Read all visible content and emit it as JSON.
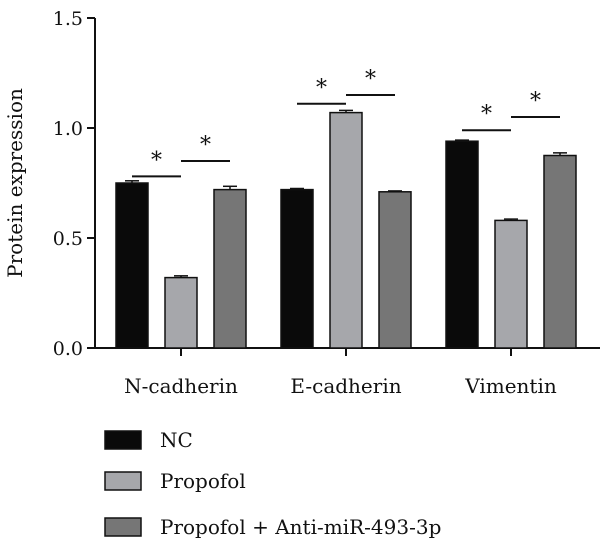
{
  "chart_data": {
    "type": "bar",
    "ylabel": "Protein expression",
    "xlabel": "",
    "ylim": [
      0,
      1.5
    ],
    "yticks": [
      "0.0",
      "0.5",
      "1.0",
      "1.5"
    ],
    "ytick_values": [
      0,
      0.5,
      1.0,
      1.5
    ],
    "categories": [
      "N-cadherin",
      "E-cadherin",
      "Vimentin"
    ],
    "series": [
      {
        "name": "NC",
        "values": [
          0.75,
          0.72,
          0.94
        ],
        "errors": [
          0.01,
          0.005,
          0.005
        ],
        "color": "#0a0a0a"
      },
      {
        "name": "Propofol",
        "values": [
          0.32,
          1.07,
          0.58
        ],
        "errors": [
          0.008,
          0.01,
          0.006
        ],
        "color": "#a6a7ab"
      },
      {
        "name": "Propofol + Anti-miR-493-3p",
        "values": [
          0.72,
          0.71,
          0.875
        ],
        "errors": [
          0.015,
          0.004,
          0.012
        ],
        "color": "#767676"
      }
    ],
    "significance": [
      {
        "category": 0,
        "from": 0,
        "to": 1,
        "y": 0.78,
        "label": "*"
      },
      {
        "category": 0,
        "from": 1,
        "to": 2,
        "y": 0.85,
        "label": "*"
      },
      {
        "category": 1,
        "from": 0,
        "to": 1,
        "y": 1.11,
        "label": "*"
      },
      {
        "category": 1,
        "from": 1,
        "to": 2,
        "y": 1.15,
        "label": "*"
      },
      {
        "category": 2,
        "from": 0,
        "to": 1,
        "y": 0.99,
        "label": "*"
      },
      {
        "category": 2,
        "from": 1,
        "to": 2,
        "y": 1.05,
        "label": "*"
      }
    ],
    "legend": {
      "placement": "bottom"
    }
  }
}
